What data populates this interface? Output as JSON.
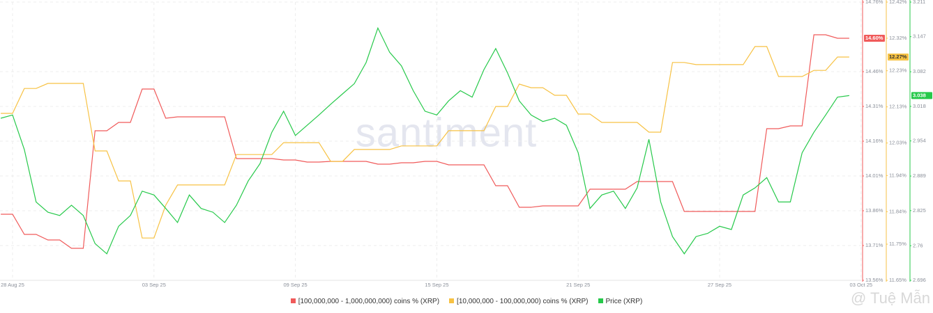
{
  "chart_data": {
    "type": "line",
    "watermark": "santiment",
    "credit": "@ Tuệ Mẫn",
    "categories": [
      null,
      "28 Aug 25",
      null,
      null,
      null,
      null,
      null,
      null,
      null,
      null,
      null,
      null,
      null,
      "03 Sep 25",
      null,
      null,
      null,
      null,
      null,
      null,
      null,
      null,
      null,
      null,
      null,
      "09 Sep 25",
      null,
      null,
      null,
      null,
      null,
      null,
      null,
      null,
      null,
      null,
      null,
      "15 Sep 25",
      null,
      null,
      null,
      null,
      null,
      null,
      null,
      null,
      null,
      null,
      null,
      "21 Sep 25",
      null,
      null,
      null,
      null,
      null,
      null,
      null,
      null,
      null,
      null,
      null,
      "27 Sep 25",
      null,
      null,
      null,
      null,
      null,
      null,
      null,
      null,
      null,
      null,
      null,
      "03 Oct 25"
    ],
    "series": [
      {
        "name": "[100,000,000 - 1,000,000,000) coins % (XRP)",
        "color": "#f05a5a",
        "axis": "y",
        "badge": "14.60%",
        "values": [
          13.845,
          13.845,
          13.758,
          13.758,
          13.734,
          13.734,
          13.698,
          13.698,
          14.205,
          14.205,
          14.241,
          14.241,
          14.385,
          14.385,
          14.259,
          14.265,
          14.265,
          14.265,
          14.265,
          14.265,
          14.085,
          14.085,
          14.085,
          14.085,
          14.079,
          14.079,
          14.07,
          14.07,
          14.073,
          14.073,
          14.073,
          14.073,
          14.061,
          14.061,
          14.067,
          14.067,
          14.073,
          14.073,
          14.058,
          14.058,
          14.058,
          14.058,
          13.968,
          13.968,
          13.875,
          13.875,
          13.881,
          13.881,
          13.881,
          13.881,
          13.953,
          13.953,
          13.953,
          13.953,
          13.986,
          13.986,
          13.986,
          13.986,
          13.857,
          13.857,
          13.857,
          13.857,
          13.857,
          13.857,
          13.857,
          14.214,
          14.214,
          14.226,
          14.226,
          14.619,
          14.619,
          14.604,
          14.604,
          null
        ]
      },
      {
        "name": "[10,000,000 - 100,000,000) coins % (XRP)",
        "color": "#f7c244",
        "axis": "y2",
        "badge": "12.27%",
        "values": [
          12.112,
          12.112,
          12.181,
          12.181,
          12.195,
          12.195,
          12.195,
          12.195,
          12.008,
          12.008,
          11.925,
          11.925,
          11.767,
          11.767,
          11.858,
          11.914,
          11.914,
          11.914,
          11.914,
          11.914,
          11.998,
          11.998,
          11.998,
          11.998,
          12.031,
          12.031,
          12.031,
          12.031,
          11.979,
          11.979,
          12.012,
          12.012,
          12.012,
          12.012,
          12.022,
          12.022,
          12.022,
          12.022,
          12.064,
          12.064,
          12.064,
          12.064,
          12.131,
          12.131,
          12.193,
          12.183,
          12.183,
          12.162,
          12.162,
          12.11,
          12.11,
          12.087,
          12.087,
          12.087,
          12.087,
          12.06,
          12.06,
          12.253,
          12.253,
          12.247,
          12.247,
          12.247,
          12.247,
          12.247,
          12.297,
          12.297,
          12.214,
          12.214,
          12.214,
          12.231,
          12.231,
          12.268,
          12.268,
          null
        ]
      },
      {
        "name": "Price (XRP)",
        "color": "#26c94a",
        "axis": "y3",
        "badge": "3.038",
        "values": [
          2.996,
          3.002,
          2.938,
          2.841,
          2.822,
          2.816,
          2.835,
          2.816,
          2.764,
          2.745,
          2.796,
          2.816,
          2.861,
          2.854,
          2.829,
          2.803,
          2.854,
          2.829,
          2.822,
          2.803,
          2.835,
          2.88,
          2.912,
          2.97,
          3.009,
          2.964,
          2.983,
          3.002,
          3.022,
          3.041,
          3.06,
          3.099,
          3.163,
          3.118,
          3.093,
          3.047,
          3.009,
          3.002,
          3.028,
          3.047,
          3.035,
          3.086,
          3.125,
          3.08,
          3.028,
          3.002,
          2.99,
          2.996,
          2.983,
          2.932,
          2.829,
          2.854,
          2.861,
          2.829,
          2.867,
          2.957,
          2.841,
          2.777,
          2.745,
          2.777,
          2.783,
          2.796,
          2.79,
          2.854,
          2.867,
          2.886,
          2.841,
          2.841,
          2.932,
          2.97,
          3.002,
          3.035,
          3.038,
          null
        ]
      }
    ],
    "ylim": [
      13.56,
      14.76
    ],
    "yticks": [
      {
        "value": 13.56,
        "label": "13.56%"
      },
      {
        "value": 13.71,
        "label": "13.71%"
      },
      {
        "value": 13.86,
        "label": "13.86%"
      },
      {
        "value": 14.01,
        "label": "14.01%"
      },
      {
        "value": 14.16,
        "label": "14.16%"
      },
      {
        "value": 14.31,
        "label": "14.31%"
      },
      {
        "value": 14.46,
        "label": "14.46%"
      },
      {
        "value": 14.76,
        "label": "14.76%"
      }
    ],
    "y2lim": [
      11.65,
      12.42
    ],
    "y2ticks": [
      {
        "value": 11.65,
        "label": "11.65%"
      },
      {
        "value": 11.75,
        "label": "11.75%"
      },
      {
        "value": 11.84,
        "label": "11.84%"
      },
      {
        "value": 11.94,
        "label": "11.94%"
      },
      {
        "value": 12.03,
        "label": "12.03%"
      },
      {
        "value": 12.13,
        "label": "12.13%"
      },
      {
        "value": 12.23,
        "label": "12.23%"
      },
      {
        "value": 12.32,
        "label": "12.32%"
      },
      {
        "value": 12.42,
        "label": "12.42%"
      }
    ],
    "y3lim": [
      2.696,
      3.211
    ],
    "y3ticks": [
      2.696,
      2.76,
      2.825,
      2.889,
      2.954,
      3.018,
      3.082,
      3.147,
      3.211
    ],
    "grid": true
  }
}
